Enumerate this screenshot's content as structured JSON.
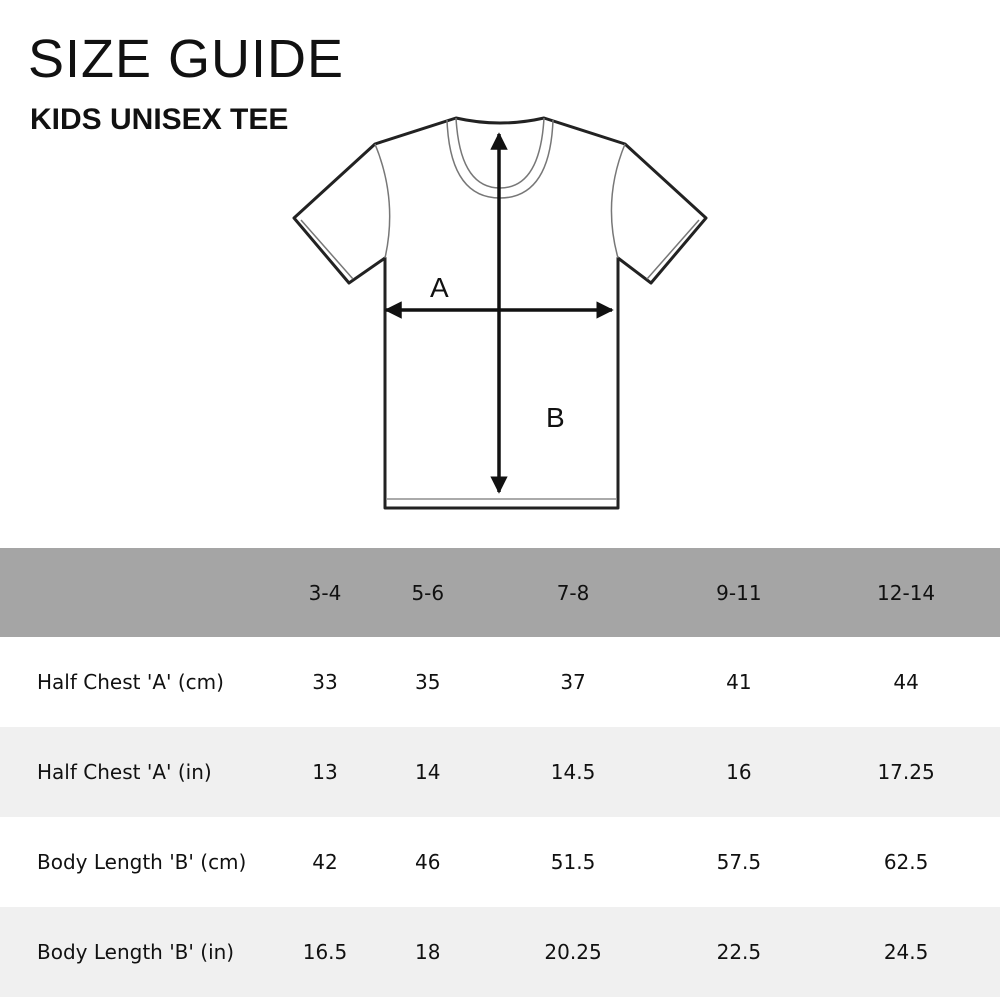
{
  "title": "SIZE GUIDE",
  "subtitle": "KIDS UNISEX TEE",
  "diagram": {
    "label_a": "A",
    "label_b": "B"
  },
  "table": {
    "columns": [
      "",
      "3-4",
      "5-6",
      "7-8",
      "9-11",
      "12-14"
    ],
    "rows": [
      {
        "label": "Half Chest  'A' (cm)",
        "values": [
          "33",
          "35",
          "37",
          "41",
          "44"
        ]
      },
      {
        "label": "Half Chest 'A' (in)",
        "values": [
          "13",
          "14",
          "14.5",
          "16",
          "17.25"
        ]
      },
      {
        "label": "Body Length  'B' (cm)",
        "values": [
          "42",
          "46",
          "51.5",
          "57.5",
          "62.5"
        ]
      },
      {
        "label": "Body Length  'B' (in)",
        "values": [
          "16.5",
          "18",
          "20.25",
          "22.5",
          "24.5"
        ]
      }
    ]
  },
  "colors": {
    "header_bg": "#a5a5a5",
    "alt_row_bg": "#f0f0f0"
  }
}
